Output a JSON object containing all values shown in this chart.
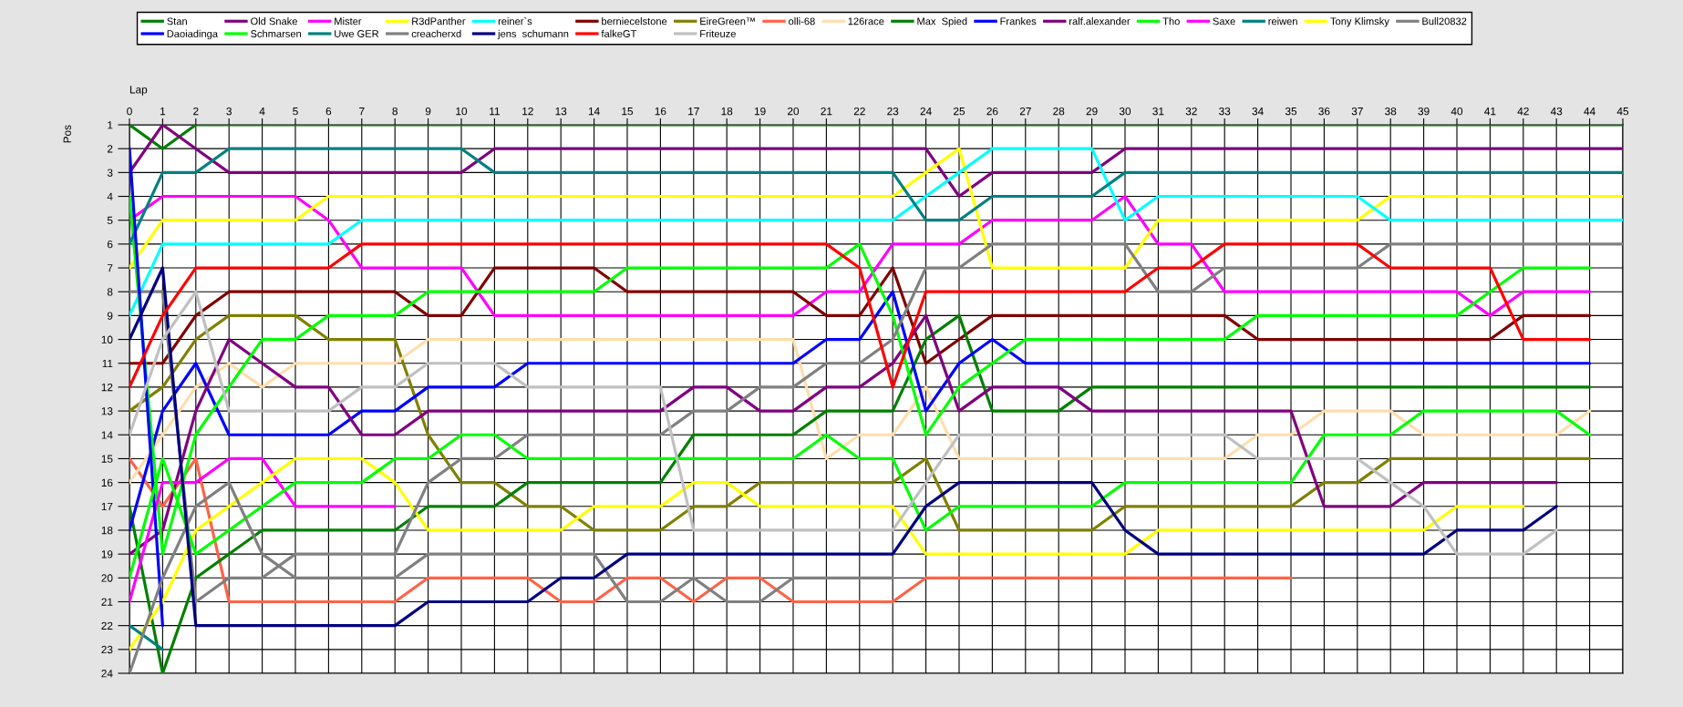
{
  "chart_data": {
    "type": "line",
    "xlabel": "Lap",
    "ylabel": "Pos",
    "x": [
      0,
      1,
      2,
      3,
      4,
      5,
      6,
      7,
      8,
      9,
      10,
      11,
      12,
      13,
      14,
      15,
      16,
      17,
      18,
      19,
      20,
      21,
      22,
      23,
      24,
      25,
      26,
      27,
      28,
      29,
      30,
      31,
      32,
      33,
      34,
      35,
      36,
      37,
      38,
      39,
      40,
      41,
      42,
      43,
      44,
      45
    ],
    "xlim": [
      0,
      45
    ],
    "ylim": [
      24,
      1
    ],
    "xticks": [
      0,
      1,
      2,
      3,
      4,
      5,
      6,
      7,
      8,
      9,
      10,
      11,
      12,
      13,
      14,
      15,
      16,
      17,
      18,
      19,
      20,
      21,
      22,
      23,
      24,
      25,
      26,
      27,
      28,
      29,
      30,
      31,
      32,
      33,
      34,
      35,
      36,
      37,
      38,
      39,
      40,
      41,
      42,
      43,
      44,
      45
    ],
    "yticks": [
      1,
      2,
      3,
      4,
      5,
      6,
      7,
      8,
      9,
      10,
      11,
      12,
      13,
      14,
      15,
      16,
      17,
      18,
      19,
      20,
      21,
      22,
      23,
      24
    ],
    "grid": true,
    "legend": "top",
    "series": [
      {
        "name": "Stan",
        "color": "#008000",
        "values": [
          1,
          2,
          1,
          1,
          1,
          1,
          1,
          1,
          1,
          1,
          1,
          1,
          1,
          1,
          1,
          1,
          1,
          1,
          1,
          1,
          1,
          1,
          1,
          1,
          1,
          1,
          1,
          1,
          1,
          1,
          1,
          1,
          1,
          1,
          1,
          1,
          1,
          1,
          1,
          1,
          1,
          1,
          1,
          1,
          1,
          1
        ]
      },
      {
        "name": "Old Snake",
        "color": "#800080",
        "values": [
          3,
          1,
          2,
          3,
          3,
          3,
          3,
          3,
          3,
          3,
          3,
          2,
          2,
          2,
          2,
          2,
          2,
          2,
          2,
          2,
          2,
          2,
          2,
          2,
          2,
          4,
          3,
          3,
          3,
          3,
          2,
          2,
          2,
          2,
          2,
          2,
          2,
          2,
          2,
          2,
          2,
          2,
          2,
          2,
          2,
          2
        ]
      },
      {
        "name": "Mister",
        "color": "#ff00ff",
        "values": [
          5,
          4,
          4,
          4,
          4,
          4,
          5,
          7,
          7,
          7,
          7,
          9,
          9,
          9,
          9,
          9,
          9,
          9,
          9,
          9,
          9,
          8,
          8,
          6,
          6,
          6,
          5,
          5,
          5,
          5,
          4,
          6,
          6,
          8,
          8,
          8,
          8,
          8,
          8,
          8,
          8,
          9,
          8,
          8,
          8,
          null
        ]
      },
      {
        "name": "R3dPanther",
        "color": "#ffff00",
        "values": [
          7,
          5,
          5,
          5,
          5,
          5,
          4,
          4,
          4,
          4,
          4,
          4,
          4,
          4,
          4,
          4,
          4,
          4,
          4,
          4,
          4,
          4,
          4,
          4,
          3,
          2,
          7,
          7,
          7,
          7,
          7,
          5,
          5,
          5,
          5,
          5,
          5,
          5,
          4,
          4,
          4,
          4,
          4,
          4,
          4,
          4
        ]
      },
      {
        "name": "reiner`s",
        "color": "#00ffff",
        "values": [
          9,
          6,
          6,
          6,
          6,
          6,
          6,
          5,
          5,
          5,
          5,
          5,
          5,
          5,
          5,
          5,
          5,
          5,
          5,
          5,
          5,
          5,
          5,
          5,
          4,
          3,
          2,
          2,
          2,
          2,
          5,
          4,
          4,
          4,
          4,
          4,
          4,
          4,
          5,
          5,
          5,
          5,
          5,
          5,
          5,
          5
        ]
      },
      {
        "name": "berniecelstone",
        "color": "#800000",
        "values": [
          11,
          11,
          9,
          8,
          8,
          8,
          8,
          8,
          8,
          9,
          9,
          7,
          7,
          7,
          7,
          8,
          8,
          8,
          8,
          8,
          8,
          9,
          9,
          7,
          11,
          10,
          9,
          9,
          9,
          9,
          9,
          9,
          9,
          9,
          10,
          10,
          10,
          10,
          10,
          10,
          10,
          10,
          9,
          9,
          9,
          null
        ]
      },
      {
        "name": "EireGreen™",
        "color": "#808000",
        "values": [
          13,
          12,
          10,
          9,
          9,
          9,
          10,
          10,
          10,
          14,
          16,
          16,
          17,
          17,
          18,
          18,
          18,
          17,
          17,
          16,
          16,
          16,
          16,
          16,
          15,
          18,
          18,
          18,
          18,
          18,
          17,
          17,
          17,
          17,
          17,
          17,
          16,
          16,
          15,
          15,
          15,
          15,
          15,
          15,
          15,
          null
        ]
      },
      {
        "name": "olli-68",
        "color": "#ff6347",
        "values": [
          15,
          17,
          15,
          21,
          21,
          21,
          21,
          21,
          21,
          20,
          20,
          20,
          20,
          21,
          21,
          20,
          20,
          21,
          20,
          20,
          21,
          21,
          21,
          21,
          20,
          20,
          20,
          20,
          20,
          20,
          20,
          20,
          20,
          20,
          20,
          20,
          null,
          null,
          null,
          null,
          null,
          null,
          null,
          null,
          null,
          null
        ]
      },
      {
        "name": "126race",
        "color": "#ffdead",
        "values": [
          16,
          14,
          12,
          11,
          12,
          11,
          11,
          11,
          11,
          10,
          10,
          10,
          10,
          10,
          10,
          10,
          10,
          10,
          10,
          10,
          10,
          15,
          14,
          14,
          12,
          15,
          15,
          15,
          15,
          15,
          15,
          15,
          15,
          15,
          14,
          14,
          13,
          13,
          13,
          14,
          14,
          14,
          14,
          14,
          13,
          null
        ]
      },
      {
        "name": "Max  Spied",
        "color": "#008000",
        "values": [
          17,
          24,
          20,
          19,
          18,
          18,
          18,
          18,
          18,
          17,
          17,
          17,
          16,
          16,
          16,
          16,
          16,
          14,
          14,
          14,
          14,
          13,
          13,
          13,
          10,
          9,
          13,
          13,
          13,
          12,
          12,
          12,
          12,
          12,
          12,
          12,
          12,
          12,
          12,
          12,
          12,
          12,
          12,
          12,
          12,
          null
        ]
      },
      {
        "name": "Frankes",
        "color": "#0000ff",
        "values": [
          18,
          13,
          11,
          14,
          14,
          14,
          14,
          13,
          13,
          12,
          12,
          12,
          11,
          11,
          11,
          11,
          11,
          11,
          11,
          11,
          11,
          10,
          10,
          8,
          13,
          11,
          10,
          11,
          11,
          11,
          11,
          11,
          11,
          11,
          11,
          11,
          11,
          11,
          11,
          11,
          11,
          11,
          11,
          11,
          11,
          null
        ]
      },
      {
        "name": "ralf.alexander",
        "color": "#800080",
        "values": [
          19,
          18,
          13,
          10,
          11,
          12,
          12,
          14,
          14,
          13,
          13,
          13,
          13,
          13,
          13,
          13,
          13,
          12,
          12,
          13,
          13,
          12,
          12,
          11,
          9,
          13,
          12,
          12,
          12,
          13,
          13,
          13,
          13,
          13,
          13,
          13,
          17,
          17,
          17,
          16,
          16,
          16,
          16,
          16,
          null,
          null
        ]
      },
      {
        "name": "Tho",
        "color": "#00ff00",
        "values": [
          4,
          19,
          14,
          12,
          10,
          10,
          9,
          9,
          9,
          8,
          8,
          8,
          8,
          8,
          8,
          7,
          7,
          7,
          7,
          7,
          7,
          7,
          6,
          9,
          14,
          12,
          11,
          10,
          10,
          10,
          10,
          10,
          10,
          10,
          9,
          9,
          9,
          9,
          9,
          9,
          9,
          8,
          7,
          7,
          7,
          null
        ]
      },
      {
        "name": "Saxe",
        "color": "#ff00ff",
        "values": [
          21,
          16,
          16,
          15,
          15,
          17,
          17,
          17,
          17,
          null,
          null,
          null,
          null,
          null,
          null,
          null,
          null,
          null,
          null,
          null,
          null,
          null,
          null,
          null,
          null,
          null,
          null,
          null,
          null,
          null,
          null,
          null,
          null,
          null,
          null,
          null,
          null,
          null,
          null,
          null,
          null,
          null,
          null,
          null,
          null,
          null
        ]
      },
      {
        "name": "reiwen",
        "color": "#008080",
        "values": [
          6,
          3,
          3,
          2,
          2,
          2,
          2,
          2,
          2,
          2,
          2,
          3,
          3,
          3,
          3,
          3,
          3,
          3,
          3,
          3,
          3,
          3,
          3,
          3,
          5,
          5,
          4,
          4,
          4,
          4,
          3,
          3,
          3,
          3,
          3,
          3,
          3,
          3,
          3,
          3,
          3,
          3,
          3,
          3,
          3,
          3
        ]
      },
      {
        "name": "Tony Klimsky",
        "color": "#ffff00",
        "values": [
          23,
          21,
          18,
          17,
          16,
          15,
          15,
          15,
          16,
          18,
          18,
          18,
          18,
          18,
          17,
          17,
          17,
          16,
          16,
          17,
          17,
          17,
          17,
          17,
          19,
          19,
          19,
          19,
          19,
          19,
          19,
          18,
          18,
          18,
          18,
          18,
          18,
          18,
          18,
          18,
          17,
          17,
          17,
          null,
          null,
          null
        ]
      },
      {
        "name": "Bull20832",
        "color": "#808080",
        "values": [
          8,
          8,
          21,
          20,
          20,
          19,
          19,
          19,
          19,
          16,
          15,
          15,
          14,
          14,
          14,
          14,
          14,
          13,
          13,
          12,
          12,
          11,
          11,
          10,
          7,
          7,
          6,
          6,
          6,
          6,
          6,
          8,
          8,
          7,
          7,
          7,
          7,
          7,
          6,
          6,
          6,
          6,
          6,
          6,
          6,
          6
        ]
      },
      {
        "name": "Daoiadinga",
        "color": "#0000ff",
        "values": [
          2,
          22,
          null,
          null,
          null,
          null,
          null,
          null,
          null,
          null,
          null,
          null,
          null,
          null,
          null,
          null,
          null,
          null,
          null,
          null,
          null,
          null,
          null,
          null,
          null,
          null,
          null,
          null,
          null,
          null,
          null,
          null,
          null,
          null,
          null,
          null,
          null,
          null,
          null,
          null,
          null,
          null,
          null,
          null,
          null,
          null
        ]
      },
      {
        "name": "Schmarsen",
        "color": "#00ff00",
        "values": [
          20,
          15,
          19,
          18,
          17,
          16,
          16,
          16,
          15,
          15,
          14,
          14,
          15,
          15,
          15,
          15,
          15,
          15,
          15,
          15,
          15,
          14,
          15,
          15,
          18,
          17,
          17,
          17,
          17,
          17,
          16,
          16,
          16,
          16,
          16,
          16,
          14,
          14,
          14,
          13,
          13,
          13,
          13,
          13,
          14,
          null
        ]
      },
      {
        "name": "Uwe GER",
        "color": "#008080",
        "values": [
          22,
          23,
          null,
          null,
          null,
          null,
          null,
          null,
          null,
          null,
          null,
          null,
          null,
          null,
          null,
          null,
          null,
          null,
          null,
          null,
          null,
          null,
          null,
          null,
          null,
          null,
          null,
          null,
          null,
          null,
          null,
          null,
          null,
          null,
          null,
          null,
          null,
          null,
          null,
          null,
          null,
          null,
          null,
          null,
          null,
          null
        ]
      },
      {
        "name": "creacherxd",
        "color": "#808080",
        "values": [
          24,
          20,
          17,
          16,
          19,
          20,
          20,
          20,
          20,
          19,
          19,
          19,
          19,
          19,
          19,
          21,
          21,
          20,
          21,
          21,
          20,
          20,
          20,
          20,
          null,
          null,
          null,
          null,
          null,
          null,
          null,
          null,
          null,
          null,
          null,
          null,
          null,
          null,
          null,
          null,
          null,
          null,
          null,
          null,
          null,
          null
        ]
      },
      {
        "name": "jens  schumann",
        "color": "#000080",
        "values": [
          10,
          7,
          22,
          22,
          22,
          22,
          22,
          22,
          22,
          21,
          21,
          21,
          21,
          20,
          20,
          19,
          19,
          19,
          19,
          19,
          19,
          19,
          19,
          19,
          17,
          16,
          16,
          16,
          16,
          16,
          18,
          19,
          19,
          19,
          19,
          19,
          19,
          19,
          19,
          19,
          18,
          18,
          18,
          17,
          null,
          null
        ]
      },
      {
        "name": "falkeGT",
        "color": "#ff0000",
        "values": [
          12,
          9,
          7,
          7,
          7,
          7,
          7,
          6,
          6,
          6,
          6,
          6,
          6,
          6,
          6,
          6,
          6,
          6,
          6,
          6,
          6,
          6,
          7,
          12,
          8,
          8,
          8,
          8,
          8,
          8,
          8,
          7,
          7,
          6,
          6,
          6,
          6,
          6,
          7,
          7,
          7,
          7,
          10,
          10,
          10,
          null
        ]
      },
      {
        "name": "Friteuze",
        "color": "#c0c0c0",
        "values": [
          14,
          10,
          8,
          13,
          13,
          13,
          13,
          12,
          12,
          11,
          11,
          11,
          12,
          12,
          12,
          12,
          12,
          18,
          18,
          18,
          18,
          18,
          18,
          18,
          16,
          14,
          14,
          14,
          14,
          14,
          14,
          14,
          14,
          14,
          15,
          15,
          15,
          15,
          16,
          17,
          19,
          19,
          19,
          18,
          null,
          null
        ]
      }
    ]
  }
}
